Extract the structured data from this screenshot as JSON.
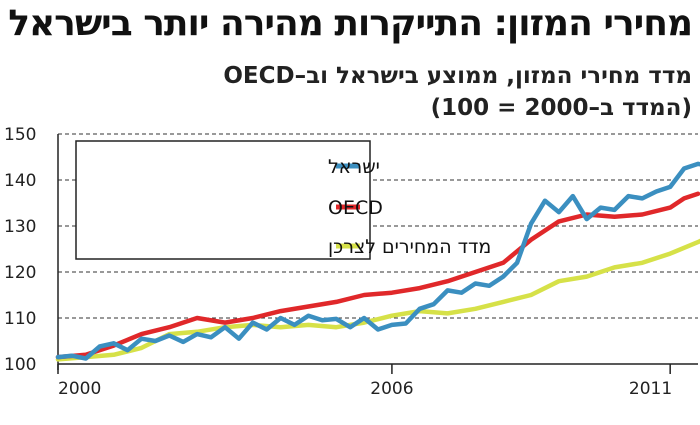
{
  "chart_data": {
    "type": "line",
    "title": "מחירי המזון: התייקרות מהירה יותר בישראל",
    "subtitle": "מדד מחירי המזון, ממוצע בישראל וב–OECD",
    "subtitle2": "(המדד ב–2000 = 100)",
    "ylim": [
      100,
      150
    ],
    "yticks": [
      "100",
      "110",
      "120",
      "130",
      "140",
      "150"
    ],
    "xlim": [
      2000,
      2011.5
    ],
    "xticks": [
      {
        "value": 2000,
        "label": "2000"
      },
      {
        "value": 2006,
        "label": "2006"
      },
      {
        "value": 2011,
        "label": "2011"
      }
    ],
    "grid": "horizontal dashed",
    "legend_position": "top-left",
    "series": [
      {
        "name": "ישראל",
        "color": "#3b8fc0",
        "points": [
          [
            2000.0,
            101.5
          ],
          [
            2000.25,
            101.8
          ],
          [
            2000.5,
            101.2
          ],
          [
            2000.75,
            103.8
          ],
          [
            2001.0,
            104.5
          ],
          [
            2001.25,
            103.0
          ],
          [
            2001.5,
            105.5
          ],
          [
            2001.75,
            105.0
          ],
          [
            2002.0,
            106.2
          ],
          [
            2002.25,
            104.8
          ],
          [
            2002.5,
            106.5
          ],
          [
            2002.75,
            105.8
          ],
          [
            2003.0,
            108.0
          ],
          [
            2003.25,
            105.5
          ],
          [
            2003.5,
            109.0
          ],
          [
            2003.75,
            107.5
          ],
          [
            2004.0,
            110.0
          ],
          [
            2004.25,
            108.5
          ],
          [
            2004.5,
            110.5
          ],
          [
            2004.75,
            109.5
          ],
          [
            2005.0,
            109.8
          ],
          [
            2005.25,
            108.0
          ],
          [
            2005.5,
            110.0
          ],
          [
            2005.75,
            107.5
          ],
          [
            2006.0,
            108.5
          ],
          [
            2006.25,
            108.8
          ],
          [
            2006.5,
            112.0
          ],
          [
            2006.75,
            113.0
          ],
          [
            2007.0,
            116.0
          ],
          [
            2007.25,
            115.5
          ],
          [
            2007.5,
            117.5
          ],
          [
            2007.75,
            117.0
          ],
          [
            2008.0,
            119.0
          ],
          [
            2008.25,
            122.0
          ],
          [
            2008.5,
            130.5
          ],
          [
            2008.75,
            135.5
          ],
          [
            2009.0,
            133.0
          ],
          [
            2009.25,
            136.5
          ],
          [
            2009.5,
            131.5
          ],
          [
            2009.75,
            134.0
          ],
          [
            2010.0,
            133.5
          ],
          [
            2010.25,
            136.5
          ],
          [
            2010.5,
            136.0
          ],
          [
            2010.75,
            137.5
          ],
          [
            2011.0,
            138.5
          ],
          [
            2011.25,
            142.5
          ],
          [
            2011.5,
            143.5
          ],
          [
            2011.75,
            143.0
          ]
        ]
      },
      {
        "name": "OECD",
        "color": "#e0282a",
        "points": [
          [
            2000.0,
            101.5
          ],
          [
            2000.5,
            102.0
          ],
          [
            2001.0,
            104.0
          ],
          [
            2001.5,
            106.5
          ],
          [
            2002.0,
            108.0
          ],
          [
            2002.5,
            110.0
          ],
          [
            2003.0,
            109.0
          ],
          [
            2003.5,
            110.0
          ],
          [
            2004.0,
            111.5
          ],
          [
            2004.5,
            112.5
          ],
          [
            2005.0,
            113.5
          ],
          [
            2005.5,
            115.0
          ],
          [
            2006.0,
            115.5
          ],
          [
            2006.5,
            116.5
          ],
          [
            2007.0,
            118.0
          ],
          [
            2007.5,
            120.0
          ],
          [
            2008.0,
            122.0
          ],
          [
            2008.5,
            127.0
          ],
          [
            2009.0,
            131.0
          ],
          [
            2009.5,
            132.5
          ],
          [
            2010.0,
            132.0
          ],
          [
            2010.5,
            132.5
          ],
          [
            2011.0,
            134.0
          ],
          [
            2011.25,
            136.0
          ],
          [
            2011.5,
            137.0
          ]
        ]
      },
      {
        "name": "מדד המחירים לצרכן",
        "color": "#d6e148",
        "points": [
          [
            2000.0,
            101.0
          ],
          [
            2000.5,
            101.5
          ],
          [
            2001.0,
            102.0
          ],
          [
            2001.5,
            103.5
          ],
          [
            2002.0,
            106.5
          ],
          [
            2002.5,
            107.0
          ],
          [
            2003.0,
            108.0
          ],
          [
            2003.5,
            108.5
          ],
          [
            2004.0,
            108.0
          ],
          [
            2004.5,
            108.5
          ],
          [
            2005.0,
            108.0
          ],
          [
            2005.5,
            109.0
          ],
          [
            2006.0,
            110.5
          ],
          [
            2006.5,
            111.5
          ],
          [
            2007.0,
            111.0
          ],
          [
            2007.5,
            112.0
          ],
          [
            2008.0,
            113.5
          ],
          [
            2008.5,
            115.0
          ],
          [
            2009.0,
            118.0
          ],
          [
            2009.5,
            119.0
          ],
          [
            2010.0,
            121.0
          ],
          [
            2010.5,
            122.0
          ],
          [
            2011.0,
            124.0
          ],
          [
            2011.5,
            126.5
          ],
          [
            2011.75,
            128.0
          ]
        ]
      }
    ]
  }
}
